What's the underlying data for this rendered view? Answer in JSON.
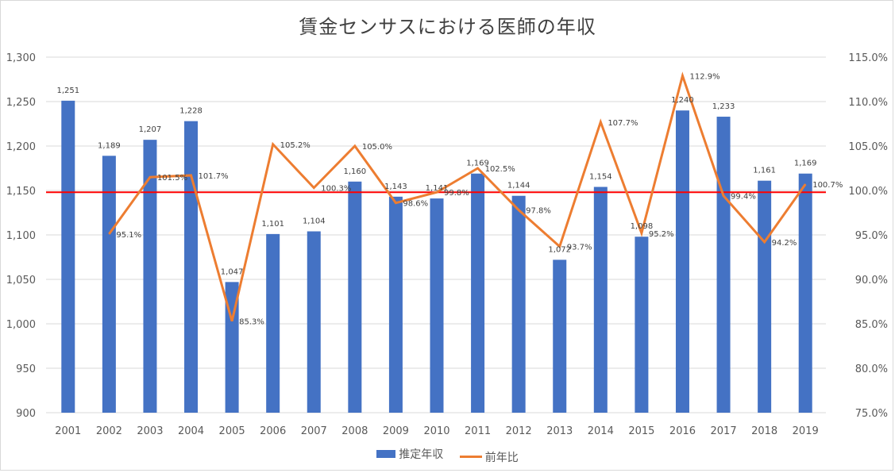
{
  "chart_data": {
    "type": "bar+line",
    "title": "賃金センサスにおける医師の年収",
    "categories": [
      "2001",
      "2002",
      "2003",
      "2004",
      "2005",
      "2006",
      "2007",
      "2008",
      "2009",
      "2010",
      "2011",
      "2012",
      "2013",
      "2014",
      "2015",
      "2016",
      "2017",
      "2018",
      "2019"
    ],
    "series": [
      {
        "name": "推定年収",
        "type": "bar",
        "axis": "left",
        "color": "#4472c4",
        "values": [
          1251,
          1189,
          1207,
          1228,
          1047,
          1101,
          1104,
          1160,
          1143,
          1141,
          1169,
          1144,
          1072,
          1154,
          1098,
          1240,
          1233,
          1161,
          1169
        ],
        "labels": [
          "1,251",
          "1,189",
          "1,207",
          "1,228",
          "1,047",
          "1,101",
          "1,104",
          "1,160",
          "1,143",
          "1,141",
          "1,169",
          "1,144",
          "1,072",
          "1,154",
          "1,098",
          "1,240",
          "1,233",
          "1,161",
          "1,169"
        ]
      },
      {
        "name": "前年比",
        "type": "line",
        "axis": "right",
        "color": "#ed7d31",
        "values": [
          null,
          95.1,
          101.5,
          101.7,
          85.3,
          105.2,
          100.3,
          105.0,
          98.6,
          99.8,
          102.5,
          97.8,
          93.7,
          107.7,
          95.2,
          112.9,
          99.4,
          94.2,
          100.7
        ],
        "labels": [
          null,
          "95.1%",
          "101.5%",
          "101.7%",
          "85.3%",
          "105.2%",
          "100.3%",
          "105.0%",
          "98.6%",
          "99.8%",
          "102.5%",
          "97.8%",
          "93.7%",
          "107.7%",
          "95.2%",
          "112.9%",
          "99.4%",
          "94.2%",
          "100.7%"
        ]
      }
    ],
    "reference_line": {
      "axis": "left",
      "value": 1148,
      "color": "#ff0000"
    },
    "left_axis": {
      "min": 900,
      "max": 1300,
      "step": 50,
      "tick_labels": [
        "900",
        "950",
        "1,000",
        "1,050",
        "1,100",
        "1,150",
        "1,200",
        "1,250",
        "1,300"
      ]
    },
    "right_axis": {
      "min": 75,
      "max": 115,
      "step": 5,
      "tick_labels": [
        "75.0%",
        "80.0%",
        "85.0%",
        "90.0%",
        "95.0%",
        "100.0%",
        "105.0%",
        "110.0%",
        "115.0%"
      ]
    },
    "grid": true,
    "legend_position": "bottom",
    "legend": [
      {
        "label": "推定年収",
        "kind": "bar",
        "color": "#4472c4"
      },
      {
        "label": "前年比",
        "kind": "line",
        "color": "#ed7d31"
      }
    ]
  }
}
